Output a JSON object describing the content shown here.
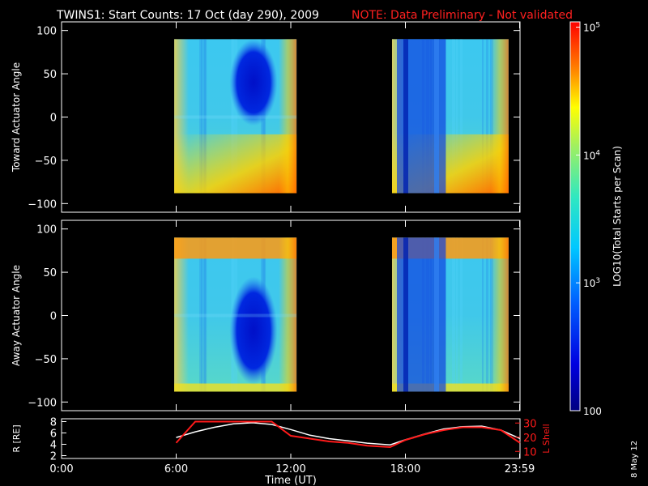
{
  "title": "TWINS1: Start Counts: 17 Oct (day 290), 2009",
  "note": "NOTE: Data Preliminary - Not validated",
  "date_stamp": "8 May 12",
  "colors": {
    "background": "#000000",
    "axis": "#ffffff",
    "note": "#ff2020",
    "r_line": "#ffffff",
    "l_line": "#ff1a1a"
  },
  "chart_data": [
    {
      "type": "heatmap",
      "name": "toward-panel",
      "ylabel": "Toward Actuator Angle",
      "ylim": [
        -110,
        110
      ],
      "yticks": [
        100,
        50,
        0,
        -50,
        -100
      ],
      "xlim": [
        0,
        24
      ],
      "data_segments": [
        [
          5.9,
          12.3
        ],
        [
          17.3,
          23.4
        ]
      ],
      "angle_range": [
        -88,
        90
      ],
      "low_count_region": {
        "hours": [
          8.8,
          11.3
        ],
        "angles": [
          -10,
          90
        ]
      }
    },
    {
      "type": "heatmap",
      "name": "away-panel",
      "ylabel": "Away Actuator Angle",
      "ylim": [
        -110,
        110
      ],
      "yticks": [
        100,
        50,
        0,
        -50,
        -100
      ],
      "xlim": [
        0,
        24
      ],
      "data_segments": [
        [
          5.9,
          12.3
        ],
        [
          17.3,
          23.4
        ]
      ],
      "angle_range": [
        -88,
        90
      ],
      "low_count_region": {
        "hours": [
          8.8,
          11.3
        ],
        "angles": [
          -80,
          45
        ]
      }
    },
    {
      "type": "line",
      "name": "orbit-panel",
      "ylabel_left": "R [RE]",
      "ylabel_right": "L Shell",
      "left_ticks": [
        8,
        6,
        4,
        2
      ],
      "left_lim": [
        1.5,
        8.5
      ],
      "right_ticks": [
        30,
        20,
        10
      ],
      "right_lim": [
        5,
        33
      ],
      "x": [
        6,
        7,
        8,
        9,
        10,
        11,
        12,
        13,
        14,
        15,
        16,
        17.2,
        18,
        19,
        20,
        21,
        22,
        23,
        24
      ],
      "series": [
        {
          "name": "R",
          "axis": "left",
          "values": [
            5.2,
            6.2,
            7.0,
            7.6,
            7.8,
            7.5,
            6.6,
            5.6,
            5.0,
            4.6,
            4.2,
            3.9,
            4.8,
            5.8,
            6.7,
            7.1,
            7.2,
            6.5,
            5.0
          ]
        },
        {
          "name": "L Shell",
          "axis": "right",
          "values": [
            16,
            31,
            31,
            31,
            31,
            31,
            21,
            19,
            17,
            16,
            14,
            13,
            18,
            22,
            25,
            27,
            27,
            25,
            16
          ]
        }
      ],
      "xticks": [
        "0:00",
        "6:00",
        "12:00",
        "18:00",
        "23:59"
      ],
      "xtick_hours": [
        0,
        6,
        12,
        18,
        23.98
      ],
      "xlabel": "Time (UT)"
    },
    {
      "type": "colorbar",
      "label": "LOG10(Total Starts per Scan)",
      "tick_labels": [
        {
          "value": 100000,
          "base": "10",
          "exp": "5"
        },
        {
          "value": 10000,
          "base": "10",
          "exp": "4"
        },
        {
          "value": 1000,
          "base": "10",
          "exp": "3"
        },
        {
          "value": 100,
          "base": "100",
          "exp": ""
        }
      ],
      "range": [
        100,
        110000
      ]
    }
  ]
}
